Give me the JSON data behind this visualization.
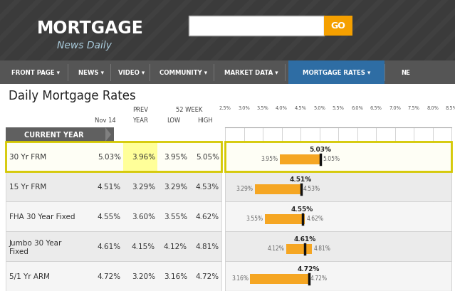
{
  "title": "Daily Mortgage Rates",
  "header_bg": "#404040",
  "header_bg2": "#505050",
  "nav_bg": "#555555",
  "nav_highlight": "#2e6da4",
  "bar_color": "#f5a623",
  "bar_border": "#e09010",
  "marker_color": "#111111",
  "grid_color": "#cccccc",
  "row_bg_white": "#ffffff",
  "row_bg_light": "#f0f0f0",
  "row_bg_gray": "#e8e8e8",
  "highlight_border": "#d4c800",
  "highlight_bg": "#fffef0",
  "highlight_yellow": "#ffff88",
  "table_header_bg": "#606060",
  "rows": [
    {
      "label": "30 Yr FRM",
      "nov14": 5.03,
      "prev_year": 3.96,
      "low52": 3.95,
      "high52": 5.05,
      "current": 5.03,
      "highlight": true
    },
    {
      "label": "15 Yr FRM",
      "nov14": 4.51,
      "prev_year": 3.29,
      "low52": 3.29,
      "high52": 4.53,
      "current": 4.51,
      "highlight": false
    },
    {
      "label": "FHA 30 Year Fixed",
      "nov14": 4.55,
      "prev_year": 3.6,
      "low52": 3.55,
      "high52": 4.62,
      "current": 4.55,
      "highlight": false
    },
    {
      "label": "Jumbo 30 Year\nFixed",
      "nov14": 4.61,
      "prev_year": 4.15,
      "low52": 4.12,
      "high52": 4.81,
      "current": 4.61,
      "highlight": false
    },
    {
      "label": "5/1 Yr ARM",
      "nov14": 4.72,
      "prev_year": 3.2,
      "low52": 3.16,
      "high52": 4.72,
      "current": 4.72,
      "highlight": false
    }
  ],
  "xmin": 2.5,
  "xmax": 8.5,
  "xticks": [
    2.5,
    3.0,
    3.5,
    4.0,
    4.5,
    5.0,
    5.5,
    6.0,
    6.5,
    7.0,
    7.5,
    8.0,
    8.5
  ],
  "nav_items": [
    "FRONT PAGE",
    "NEWS",
    "VIDEO",
    "COMMUNITY",
    "MARKET DATA",
    "MORTGAGE RATES",
    "NE"
  ],
  "nav_highlight_item": "MORTGAGE RATES"
}
